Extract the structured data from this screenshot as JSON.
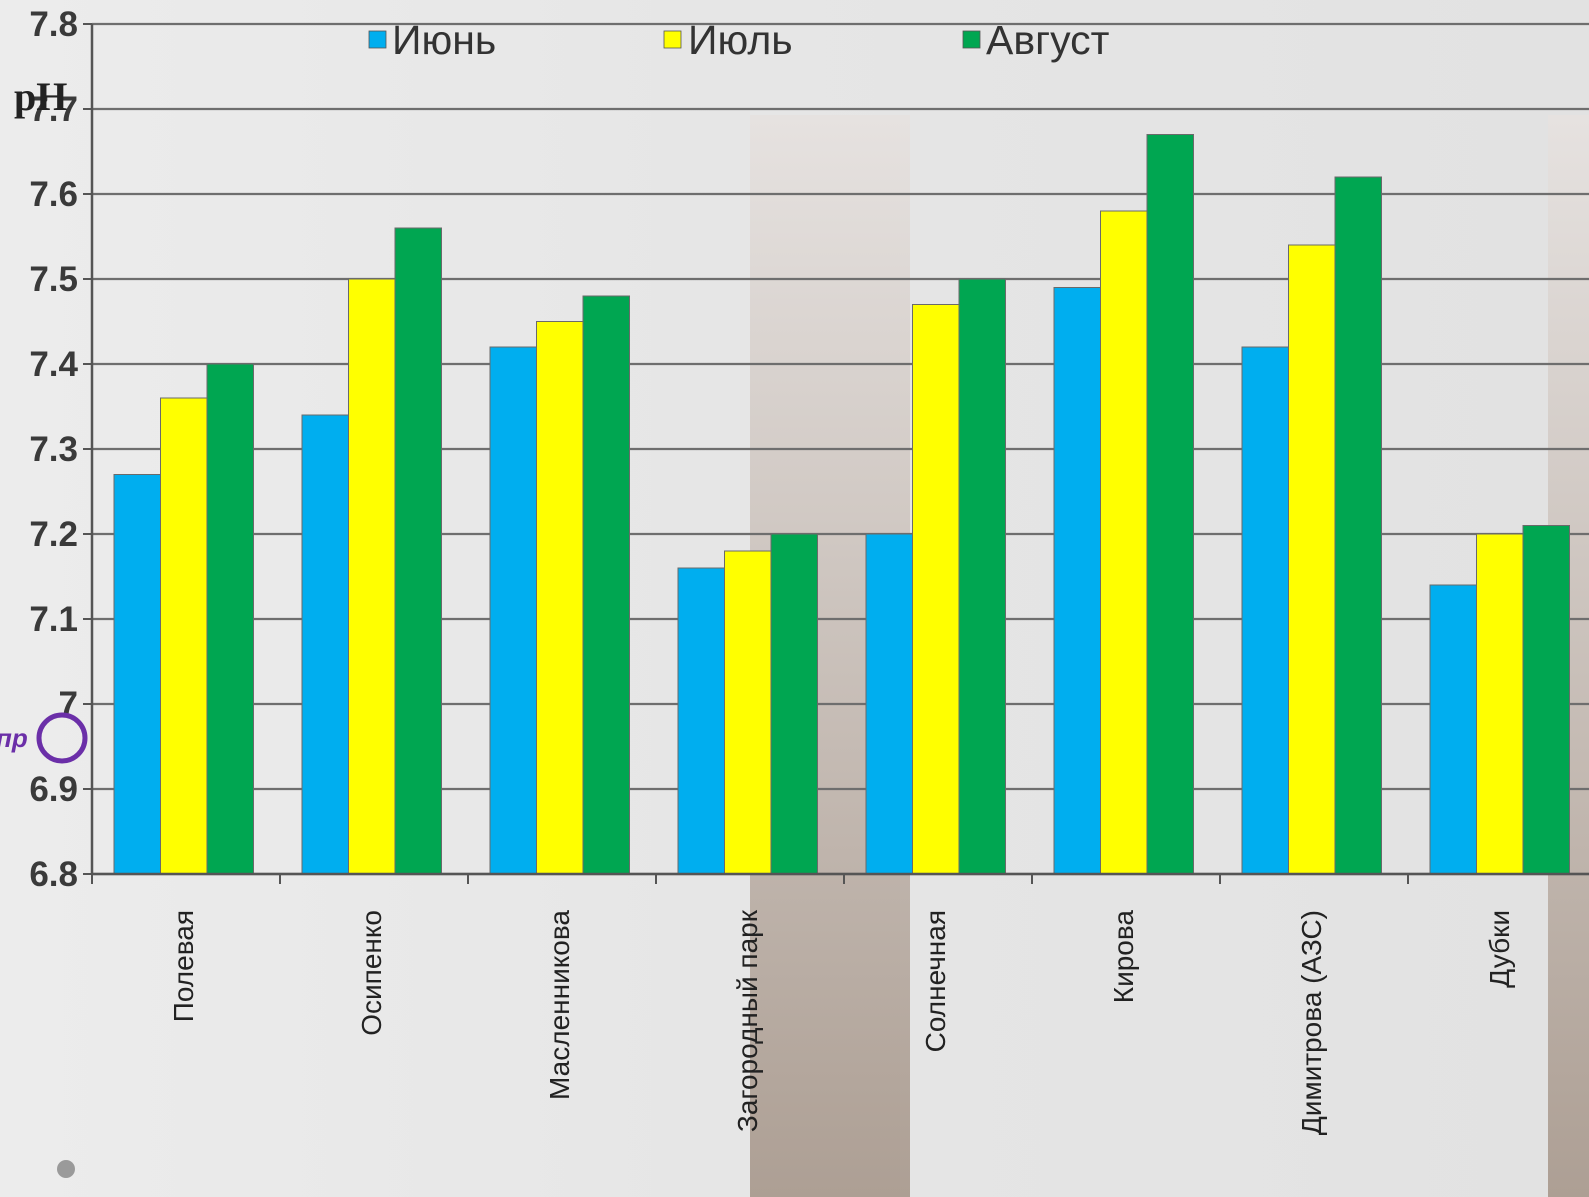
{
  "chart_data": {
    "type": "bar",
    "ylabel": "pH",
    "ylim": [
      6.8,
      7.8
    ],
    "yticks": [
      "6.8",
      "6.9",
      "7",
      "7.1",
      "7.2",
      "7.3",
      "7.4",
      "7.5",
      "7.6",
      "7.7",
      "7.8"
    ],
    "grid": true,
    "legend_position": "top",
    "categories": [
      "Полевая",
      "Осипенко",
      "Масленникова",
      "Загородный парк",
      "Солнечная",
      "Кирова",
      "Димитрова (АЗС)",
      "Дубки"
    ],
    "series": [
      {
        "name": "Июнь",
        "color": "#00aeef",
        "values": [
          7.27,
          7.34,
          7.42,
          7.16,
          7.2,
          7.49,
          7.42,
          7.14
        ]
      },
      {
        "name": "Июль",
        "color": "#ffff00",
        "values": [
          7.36,
          7.5,
          7.45,
          7.18,
          7.47,
          7.58,
          7.54,
          7.2
        ]
      },
      {
        "name": "Август",
        "color": "#00a651",
        "values": [
          7.4,
          7.56,
          7.48,
          7.2,
          7.5,
          7.67,
          7.62,
          7.21
        ]
      }
    ]
  },
  "corner_note": "пр"
}
